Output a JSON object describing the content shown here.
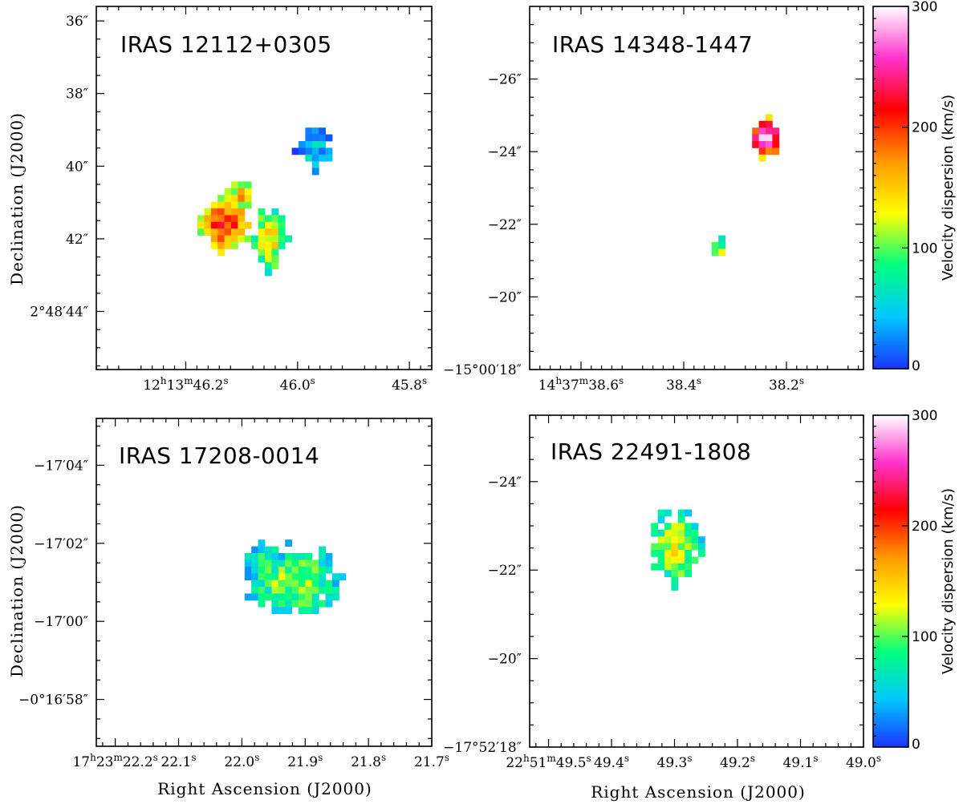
{
  "chart_data": [
    {
      "type": "heatmap",
      "title": "IRAS 12112+0305",
      "xlabel": "",
      "ylabel": "Declination (J2000)",
      "xticks": [
        {
          "label": [
            "12",
            "h",
            "13",
            "m",
            "46.2",
            "s"
          ],
          "value": 46.2
        },
        {
          "label": [
            "46.0",
            "s"
          ],
          "value": 46.0
        },
        {
          "label": [
            "45.8",
            "s"
          ],
          "value": 45.8
        }
      ],
      "yticks": [
        "2°48′44″",
        "42″",
        "40″",
        "38″",
        "36″"
      ],
      "ytick_values": [
        44,
        42,
        40,
        38,
        36
      ],
      "xlim": [
        46.36,
        45.76
      ],
      "ylim": [
        35.6,
        45.6
      ],
      "blobs": [
        {
          "ra": 46.13,
          "dec": 41.6,
          "sra": 0.03,
          "sdec": 0.55,
          "peak": 210
        },
        {
          "ra": 46.05,
          "dec": 42.0,
          "sra": 0.02,
          "sdec": 0.6,
          "peak": 140
        },
        {
          "ra": 46.1,
          "dec": 40.8,
          "sra": 0.012,
          "sdec": 0.25,
          "peak": 170
        },
        {
          "ra": 45.97,
          "dec": 39.5,
          "sra": 0.02,
          "sdec": 0.35,
          "peak": 45
        }
      ]
    },
    {
      "type": "heatmap",
      "title": "IRAS 14348-1447",
      "xlabel": "",
      "ylabel": "",
      "xticks": [
        {
          "label": [
            "14",
            "h",
            "37",
            "m",
            "38.6",
            "s"
          ],
          "value": 38.6
        },
        {
          "label": [
            "38.4",
            "s"
          ],
          "value": 38.4
        },
        {
          "label": [
            "38.2",
            "s"
          ],
          "value": 38.2
        }
      ],
      "yticks": [
        "−15°00′18″",
        "−20″",
        "−22″",
        "−24″",
        "−26″"
      ],
      "ytick_values": [
        -18,
        -20,
        -22,
        -24,
        -26
      ],
      "xlim": [
        38.7,
        38.05
      ],
      "ylim": [
        -28,
        -18
      ],
      "blobs": [
        {
          "ra": 38.33,
          "dec": -21.3,
          "sra": 0.007,
          "sdec": 0.2,
          "peak": 120
        },
        {
          "ra": 38.24,
          "dec": -24.4,
          "sra": 0.02,
          "sdec": 0.32,
          "peak": 300
        }
      ]
    },
    {
      "type": "heatmap",
      "title": "IRAS 17208-0014",
      "xlabel": "Right Ascension (J2000)",
      "ylabel": "Declination (J2000)",
      "xticks": [
        {
          "label": [
            "17",
            "h",
            "23",
            "m",
            "22.2",
            "s"
          ],
          "value": 22.2
        },
        {
          "label": [
            "22.1",
            "s"
          ],
          "value": 22.1
        },
        {
          "label": [
            "22.0",
            "s"
          ],
          "value": 22.0
        },
        {
          "label": [
            "21.9",
            "s"
          ],
          "value": 21.9
        },
        {
          "label": [
            "21.8",
            "s"
          ],
          "value": 21.8
        },
        {
          "label": [
            "21.7",
            "s"
          ],
          "value": 21.7
        }
      ],
      "yticks": [
        "−0°16′58″",
        "−17′00″",
        "−17′02″",
        "−17′04″"
      ],
      "ytick_values": [
        58,
        60,
        62,
        64
      ],
      "xlim": [
        22.23,
        21.7
      ],
      "ylim": [
        65.2,
        56.8
      ],
      "blobs": [
        {
          "ra": 21.92,
          "dec": 61.0,
          "sra": 0.045,
          "sdec": 0.55,
          "peak": 110
        },
        {
          "ra": 21.96,
          "dec": 61.4,
          "sra": 0.025,
          "sdec": 0.4,
          "peak": 80
        }
      ]
    },
    {
      "type": "heatmap",
      "title": "IRAS 22491-1808",
      "xlabel": "Right Ascension (J2000)",
      "ylabel": "",
      "xticks": [
        {
          "label": [
            "22",
            "h",
            "51",
            "m",
            "49.5",
            "s"
          ],
          "value": 49.5
        },
        {
          "label": [
            "49.4",
            "s"
          ],
          "value": 49.4
        },
        {
          "label": [
            "49.3",
            "s"
          ],
          "value": 49.3
        },
        {
          "label": [
            "49.2",
            "s"
          ],
          "value": 49.2
        },
        {
          "label": [
            "49.1",
            "s"
          ],
          "value": 49.1
        },
        {
          "label": [
            "49.0",
            "s"
          ],
          "value": 49.0
        }
      ],
      "yticks": [
        "−17°52′18″",
        "−20″",
        "−22″",
        "−24″"
      ],
      "ytick_values": [
        -18,
        -20,
        -22,
        -24
      ],
      "xlim": [
        49.53,
        49.0
      ],
      "ylim": [
        -25.5,
        -18
      ],
      "blobs": [
        {
          "ra": 49.3,
          "dec": -22.5,
          "sra": 0.025,
          "sdec": 0.5,
          "peak": 135
        }
      ]
    }
  ],
  "colorbar": {
    "label": "Velocity dispersion (km/s)",
    "min": 0,
    "max": 300,
    "ticks": [
      "0",
      "100",
      "200",
      "300"
    ],
    "tick_values": [
      0,
      100,
      200,
      300
    ],
    "colors": [
      "#1a33ff",
      "#00c8ff",
      "#00ff80",
      "#ffff00",
      "#ff9900",
      "#ff0000",
      "#ff33cc",
      "#ffffff"
    ]
  }
}
